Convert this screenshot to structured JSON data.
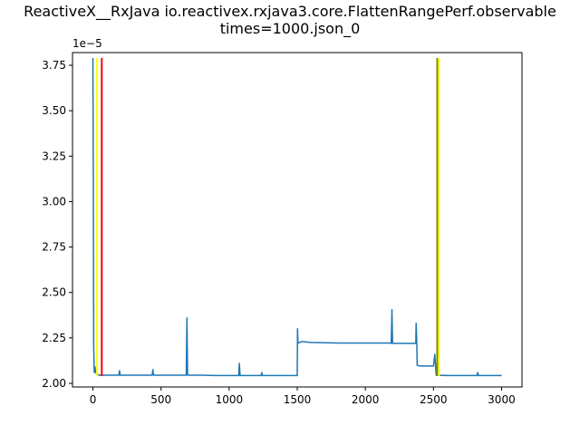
{
  "chart_data": {
    "type": "line",
    "title_lines": [
      "ReactiveX__RxJava io.reactivex.rxjava3.core.FlattenRangePerf.observable",
      "times=1000.json_0"
    ],
    "xlabel": "",
    "ylabel": "",
    "y_offset_text": "1e−5",
    "xlim": [
      -150,
      3150
    ],
    "ylim": [
      1.98,
      3.82
    ],
    "x_ticks": [
      0,
      500,
      1000,
      1500,
      2000,
      2500,
      3000
    ],
    "x_tick_labels": [
      "0",
      "500",
      "1000",
      "1500",
      "2000",
      "2500",
      "3000"
    ],
    "y_ticks": [
      2.0,
      2.25,
      2.5,
      2.75,
      3.0,
      3.25,
      3.5,
      3.75
    ],
    "y_tick_labels": [
      "2.00",
      "2.25",
      "2.50",
      "2.75",
      "3.00",
      "3.25",
      "3.50",
      "3.75"
    ],
    "grid": false,
    "series": [
      {
        "color": "#1f77b4",
        "points": [
          [
            0,
            3.79
          ],
          [
            3,
            3.1
          ],
          [
            6,
            2.2
          ],
          [
            10,
            2.06
          ],
          [
            15,
            2.09
          ],
          [
            20,
            2.06
          ],
          [
            30,
            2.05
          ],
          [
            50,
            2.045
          ],
          [
            100,
            2.045
          ],
          [
            190,
            2.045
          ],
          [
            195,
            2.07
          ],
          [
            200,
            2.045
          ],
          [
            300,
            2.045
          ],
          [
            435,
            2.045
          ],
          [
            440,
            2.075
          ],
          [
            445,
            2.045
          ],
          [
            600,
            2.045
          ],
          [
            685,
            2.045
          ],
          [
            690,
            2.36
          ],
          [
            695,
            2.045
          ],
          [
            800,
            2.045
          ],
          [
            900,
            2.043
          ],
          [
            1000,
            2.043
          ],
          [
            1070,
            2.043
          ],
          [
            1075,
            2.11
          ],
          [
            1080,
            2.043
          ],
          [
            1200,
            2.043
          ],
          [
            1235,
            2.043
          ],
          [
            1240,
            2.06
          ],
          [
            1245,
            2.043
          ],
          [
            1400,
            2.043
          ],
          [
            1500,
            2.043
          ],
          [
            1502,
            2.3
          ],
          [
            1505,
            2.22
          ],
          [
            1530,
            2.23
          ],
          [
            1600,
            2.225
          ],
          [
            1800,
            2.222
          ],
          [
            2000,
            2.222
          ],
          [
            2180,
            2.222
          ],
          [
            2190,
            2.22
          ],
          [
            2195,
            2.405
          ],
          [
            2200,
            2.22
          ],
          [
            2300,
            2.22
          ],
          [
            2370,
            2.22
          ],
          [
            2373,
            2.33
          ],
          [
            2378,
            2.21
          ],
          [
            2380,
            2.1
          ],
          [
            2400,
            2.095
          ],
          [
            2500,
            2.095
          ],
          [
            2510,
            2.16
          ],
          [
            2515,
            2.1
          ],
          [
            2520,
            2.045
          ],
          [
            2600,
            2.043
          ],
          [
            2700,
            2.043
          ],
          [
            2820,
            2.043
          ],
          [
            2825,
            2.06
          ],
          [
            2830,
            2.043
          ],
          [
            2900,
            2.043
          ],
          [
            3000,
            2.043
          ]
        ]
      }
    ],
    "vertical_lines": [
      {
        "x": 30,
        "y0": 2.04,
        "y1": 3.79,
        "color": "#ffff00"
      },
      {
        "x": 65,
        "y0": 2.04,
        "y1": 3.79,
        "color": "#ff0000"
      },
      {
        "x": 2528,
        "y0": 2.04,
        "y1": 3.79,
        "color": "#808000"
      },
      {
        "x": 2540,
        "y0": 2.04,
        "y1": 3.79,
        "color": "#ffff00"
      }
    ]
  }
}
